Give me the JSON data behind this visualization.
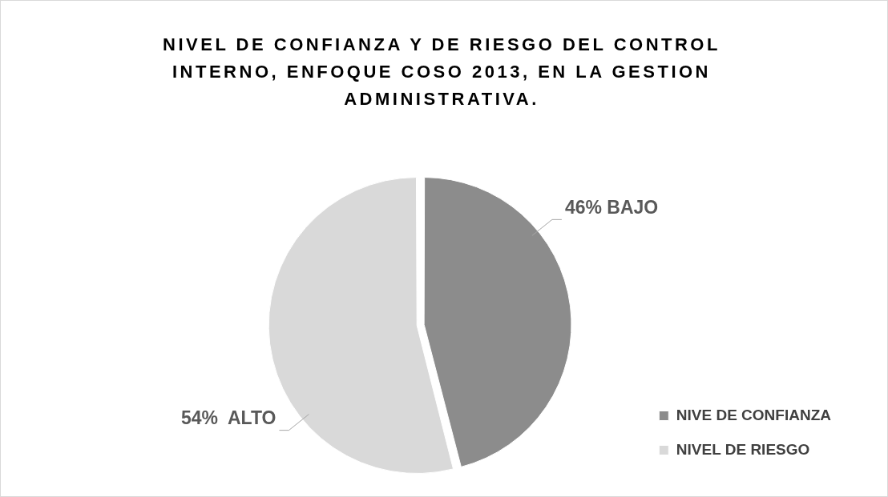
{
  "chart_data": {
    "type": "pie",
    "title": "NIVEL DE CONFIANZA Y DE RIESGO DEL CONTROL INTERNO, ENFOQUE COSO 2013, EN LA GESTION ADMINISTRATIVA.",
    "categories": [
      "NIVE DE CONFIANZA",
      "NIVEL DE RIESGO"
    ],
    "values": [
      46,
      54
    ],
    "colors": [
      "#8c8c8c",
      "#d9d9d9"
    ],
    "value_labels": [
      "46% BAJO",
      "54%  ALTO"
    ],
    "legend": "bottom right"
  }
}
